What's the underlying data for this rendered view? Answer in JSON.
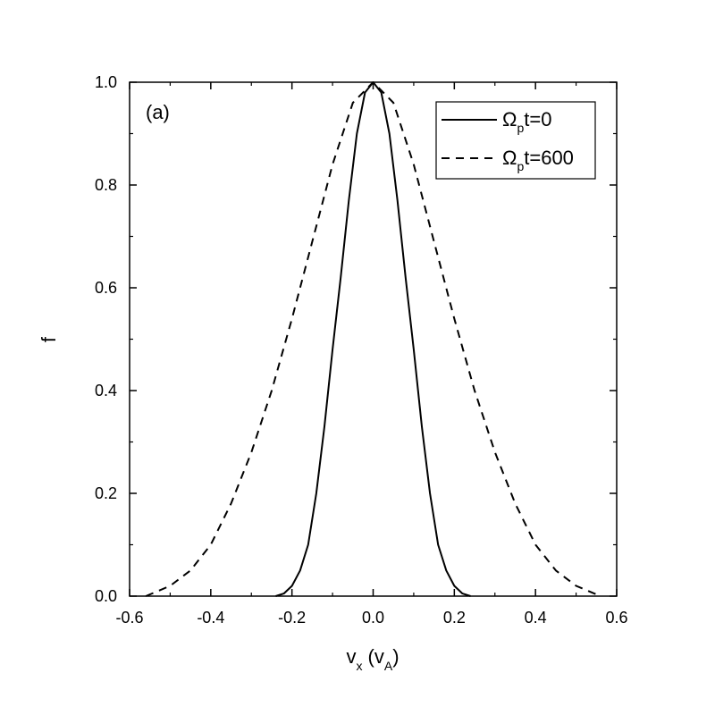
{
  "chart_data": {
    "type": "line",
    "panel_label": "(a)",
    "xlabel": {
      "main": "v",
      "sub": "x",
      "unit_open": " (v",
      "unit_sub": "A",
      "unit_close": ")"
    },
    "ylabel": "f",
    "xlim": [
      -0.6,
      0.6
    ],
    "ylim": [
      0.0,
      1.0
    ],
    "xticks": [
      -0.6,
      -0.4,
      -0.2,
      0.0,
      0.2,
      0.4,
      0.6
    ],
    "xtick_labels": [
      "-0.6",
      "-0.4",
      "-0.2",
      "0.0",
      "0.2",
      "0.4",
      "0.6"
    ],
    "yticks": [
      0.0,
      0.2,
      0.4,
      0.6,
      0.8,
      1.0
    ],
    "ytick_labels": [
      "0.0",
      "0.2",
      "0.4",
      "0.6",
      "0.8",
      "1.0"
    ],
    "grid": false,
    "legend_position": "top-right",
    "series": [
      {
        "legend": {
          "sym": "Ω",
          "sub": "p",
          "rest": "t=0"
        },
        "style": "solid",
        "x": [
          -0.24,
          -0.22,
          -0.2,
          -0.18,
          -0.16,
          -0.14,
          -0.12,
          -0.1,
          -0.08,
          -0.06,
          -0.04,
          -0.02,
          0.0,
          0.02,
          0.04,
          0.06,
          0.08,
          0.1,
          0.12,
          0.14,
          0.16,
          0.18,
          0.2,
          0.22,
          0.24
        ],
        "y": [
          0.0,
          0.005,
          0.02,
          0.05,
          0.1,
          0.2,
          0.33,
          0.48,
          0.62,
          0.77,
          0.9,
          0.98,
          1.0,
          0.98,
          0.9,
          0.77,
          0.62,
          0.48,
          0.33,
          0.2,
          0.1,
          0.05,
          0.02,
          0.005,
          0.0
        ]
      },
      {
        "legend": {
          "sym": "Ω",
          "sub": "p",
          "rest": "t=600"
        },
        "style": "dashed",
        "x": [
          -0.56,
          -0.5,
          -0.45,
          -0.4,
          -0.35,
          -0.3,
          -0.25,
          -0.2,
          -0.15,
          -0.1,
          -0.05,
          0.0,
          0.05,
          0.1,
          0.15,
          0.2,
          0.25,
          0.3,
          0.35,
          0.4,
          0.45,
          0.5,
          0.56
        ],
        "y": [
          0.0,
          0.02,
          0.05,
          0.1,
          0.18,
          0.28,
          0.4,
          0.54,
          0.69,
          0.84,
          0.96,
          1.0,
          0.96,
          0.84,
          0.69,
          0.54,
          0.4,
          0.28,
          0.18,
          0.1,
          0.05,
          0.02,
          0.0
        ]
      }
    ]
  }
}
